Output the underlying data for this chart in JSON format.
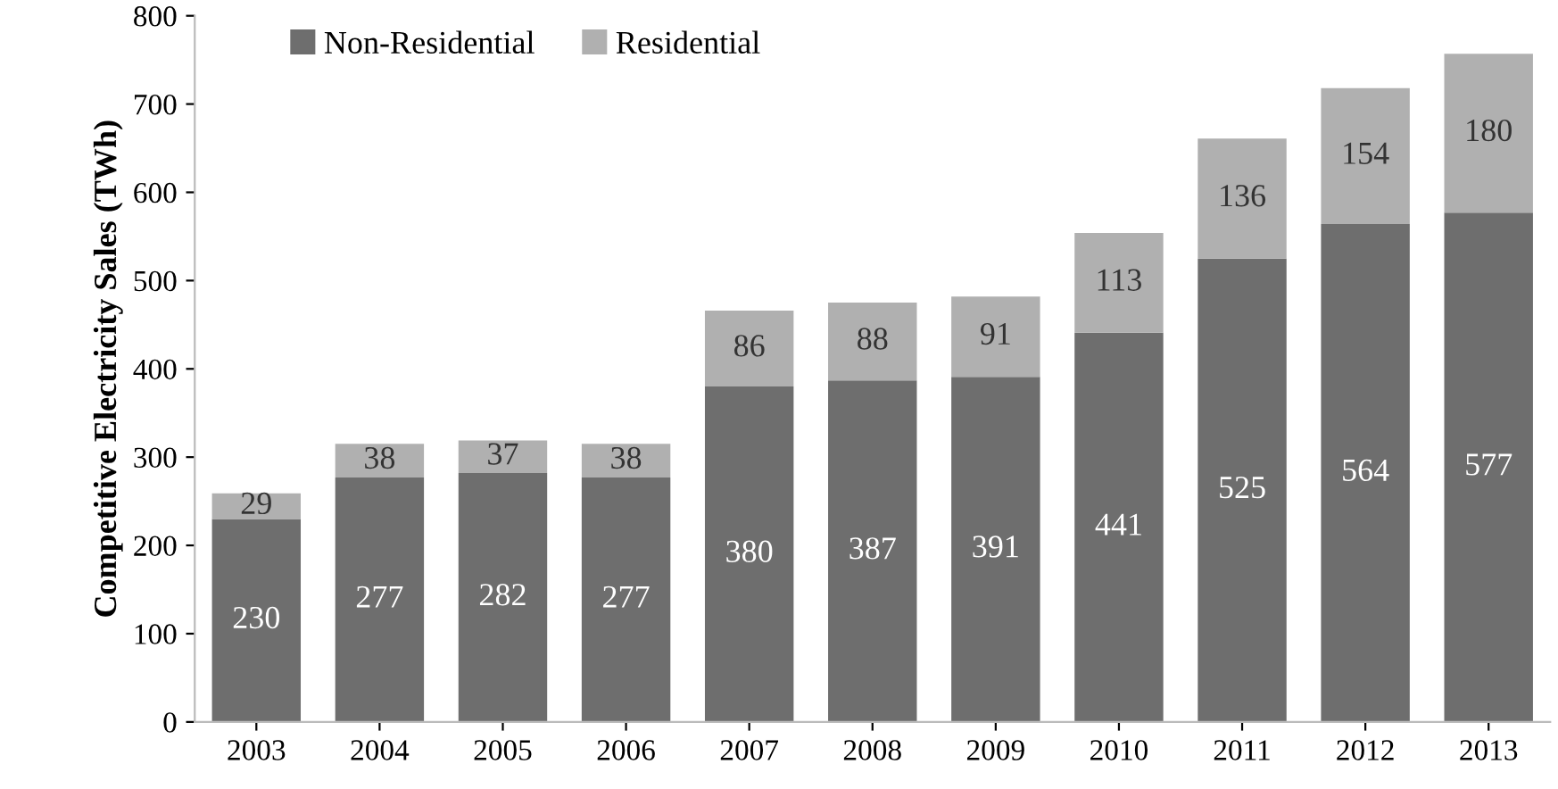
{
  "chart_data": {
    "type": "bar",
    "stacked": true,
    "ylabel": "Competitive Electricity Sales (TWh)",
    "categories": [
      "2003",
      "2004",
      "2005",
      "2006",
      "2007",
      "2008",
      "2009",
      "2010",
      "2011",
      "2012",
      "2013"
    ],
    "series": [
      {
        "name": "Non-Residential",
        "color": "#6e6e6e",
        "values": [
          230,
          277,
          282,
          277,
          380,
          387,
          391,
          441,
          525,
          564,
          577
        ]
      },
      {
        "name": "Residential",
        "color": "#b0b0b0",
        "values": [
          29,
          38,
          37,
          38,
          86,
          88,
          91,
          113,
          136,
          154,
          180
        ]
      }
    ],
    "ylim": [
      0,
      800
    ],
    "yticks": [
      0,
      100,
      200,
      300,
      400,
      500,
      600,
      700,
      800
    ],
    "grid": false,
    "legend": "top",
    "data_labels": true
  }
}
